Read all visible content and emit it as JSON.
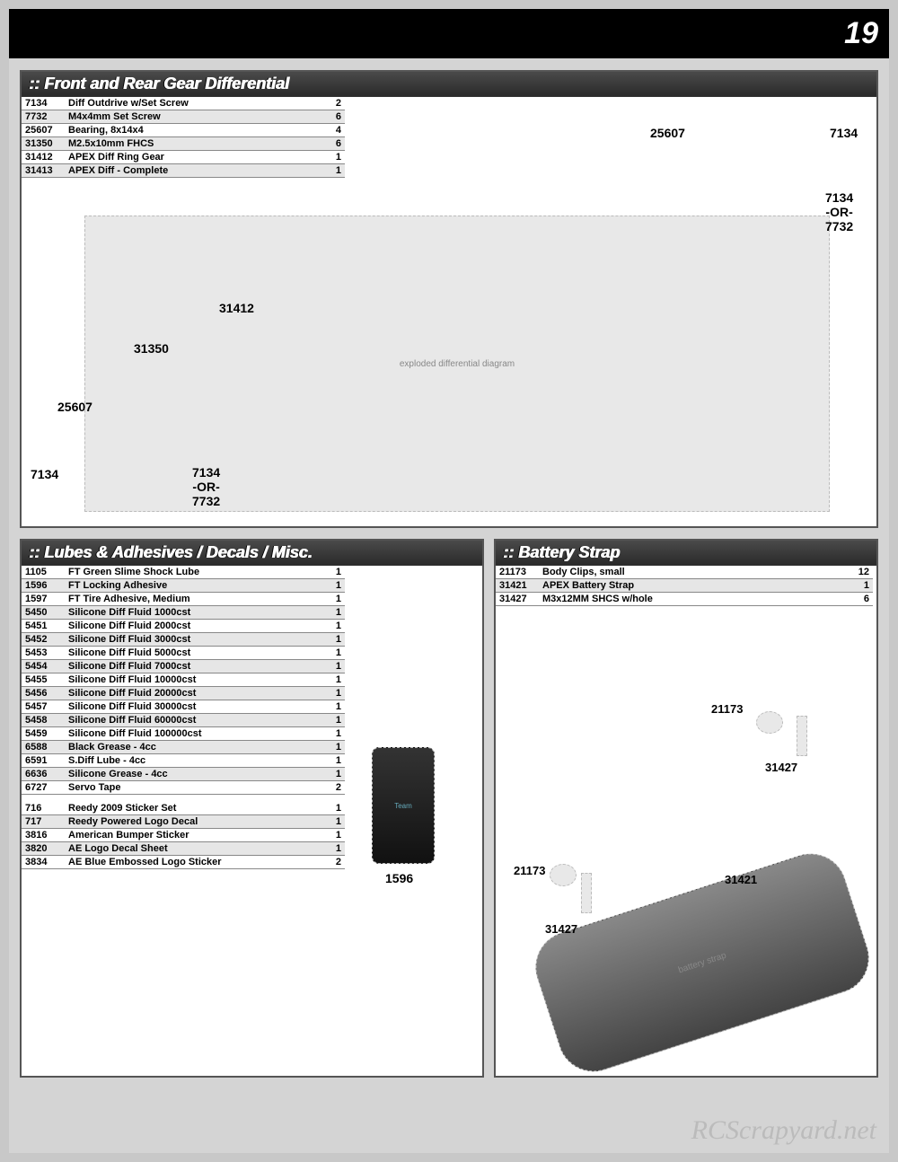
{
  "page_number": "19",
  "watermark": "RCScrapyard.net",
  "panel1": {
    "title": ":: Front and Rear Gear Differential",
    "rows": [
      {
        "pn": "7134",
        "desc": "Diff Outdrive w/Set Screw",
        "qty": "2"
      },
      {
        "pn": "7732",
        "desc": "M4x4mm Set Screw",
        "qty": "6"
      },
      {
        "pn": "25607",
        "desc": "Bearing, 8x14x4",
        "qty": "4"
      },
      {
        "pn": "31350",
        "desc": "M2.5x10mm FHCS",
        "qty": "6"
      },
      {
        "pn": "31412",
        "desc": "APEX Diff Ring Gear",
        "qty": "1"
      },
      {
        "pn": "31413",
        "desc": "APEX Diff - Complete",
        "qty": "1"
      }
    ],
    "labels": {
      "l25607a": "25607",
      "l7134a": "7134",
      "l7134or7732a": "7134\n-OR-\n7732",
      "l31412": "31412",
      "l31350": "31350",
      "l25607b": "25607",
      "l7134b": "7134",
      "l7134or7732b": "7134\n-OR-\n7732"
    }
  },
  "panel2": {
    "title": ":: Lubes & Adhesives / Decals / Misc.",
    "rows1": [
      {
        "pn": "1105",
        "desc": "FT Green Slime Shock Lube",
        "qty": "1"
      },
      {
        "pn": "1596",
        "desc": "FT Locking Adhesive",
        "qty": "1"
      },
      {
        "pn": "1597",
        "desc": "FT Tire Adhesive, Medium",
        "qty": "1"
      },
      {
        "pn": "5450",
        "desc": "Silicone Diff Fluid 1000cst",
        "qty": "1"
      },
      {
        "pn": "5451",
        "desc": "Silicone Diff Fluid 2000cst",
        "qty": "1"
      },
      {
        "pn": "5452",
        "desc": "Silicone Diff Fluid 3000cst",
        "qty": "1"
      },
      {
        "pn": "5453",
        "desc": "Silicone Diff Fluid 5000cst",
        "qty": "1"
      },
      {
        "pn": "5454",
        "desc": "Silicone Diff Fluid 7000cst",
        "qty": "1"
      },
      {
        "pn": "5455",
        "desc": "Silicone Diff Fluid 10000cst",
        "qty": "1"
      },
      {
        "pn": "5456",
        "desc": "Silicone Diff Fluid 20000cst",
        "qty": "1"
      },
      {
        "pn": "5457",
        "desc": "Silicone Diff Fluid 30000cst",
        "qty": "1"
      },
      {
        "pn": "5458",
        "desc": "Silicone Diff Fluid 60000cst",
        "qty": "1"
      },
      {
        "pn": "5459",
        "desc": "Silicone Diff Fluid 100000cst",
        "qty": "1"
      },
      {
        "pn": "6588",
        "desc": "Black Grease - 4cc",
        "qty": "1"
      },
      {
        "pn": "6591",
        "desc": "S.Diff Lube - 4cc",
        "qty": "1"
      },
      {
        "pn": "6636",
        "desc": "Silicone Grease - 4cc",
        "qty": "1"
      },
      {
        "pn": "6727",
        "desc": "Servo Tape",
        "qty": "2"
      }
    ],
    "rows2": [
      {
        "pn": "716",
        "desc": "Reedy 2009 Sticker Set",
        "qty": "1"
      },
      {
        "pn": "717",
        "desc": "Reedy Powered Logo Decal",
        "qty": "1"
      },
      {
        "pn": "3816",
        "desc": "American Bumper Sticker",
        "qty": "1"
      },
      {
        "pn": "3820",
        "desc": "AE Logo Decal Sheet",
        "qty": "1"
      },
      {
        "pn": "3834",
        "desc": "AE Blue Embossed Logo Sticker",
        "qty": "2"
      }
    ],
    "label1596": "1596"
  },
  "panel3": {
    "title": ":: Battery Strap",
    "rows": [
      {
        "pn": "21173",
        "desc": "Body Clips, small",
        "qty": "12"
      },
      {
        "pn": "31421",
        "desc": "APEX Battery Strap",
        "qty": "1"
      },
      {
        "pn": "31427",
        "desc": "M3x12MM SHCS w/hole",
        "qty": "6"
      }
    ],
    "labels": {
      "l21173a": "21173",
      "l31427a": "31427",
      "l21173b": "21173",
      "l31427b": "31427",
      "l31421": "31421"
    }
  }
}
